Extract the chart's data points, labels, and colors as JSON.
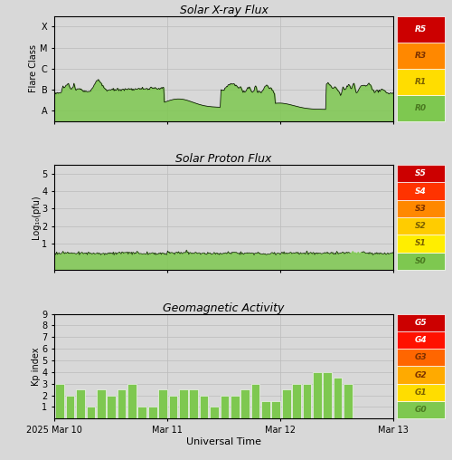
{
  "title_xray": "Solar X-ray Flux",
  "title_proton": "Solar Proton Flux",
  "title_geo": "Geomagnetic Activity",
  "xlabel": "Universal Time",
  "ylabel_xray": "Flare Class",
  "ylabel_proton": "Log₁₀(pfu)",
  "ylabel_geo": "Kp index",
  "bg_color": "#d8d8d8",
  "plot_bg": "#d8d8d8",
  "green_fill": "#7ec850",
  "r_labels_bt": [
    "R0",
    "R1",
    "R3",
    "R5"
  ],
  "r_colors_bt": [
    "#7ec850",
    "#ffdd00",
    "#ff8800",
    "#cc0000"
  ],
  "r_text_colors": [
    "#4a7a20",
    "#7a6000",
    "#7a3000",
    "#ffffff"
  ],
  "s_labels_bt": [
    "S0",
    "S1",
    "S2",
    "S3",
    "S4",
    "S5"
  ],
  "s_colors_bt": [
    "#7ec850",
    "#ffee00",
    "#ffcc00",
    "#ff8800",
    "#ff3300",
    "#cc0000"
  ],
  "s_text_colors": [
    "#4a7a20",
    "#7a6000",
    "#7a6000",
    "#7a3000",
    "#ffffff",
    "#ffffff"
  ],
  "g_labels_bt": [
    "G0",
    "G1",
    "G2",
    "G3",
    "G4",
    "G5"
  ],
  "g_colors_bt": [
    "#7ec850",
    "#ffdd00",
    "#ffaa00",
    "#ff6600",
    "#ff1100",
    "#cc0000"
  ],
  "g_text_colors": [
    "#4a7a20",
    "#7a6000",
    "#7a3000",
    "#7a3000",
    "#ffffff",
    "#ffffff"
  ],
  "kp_values": [
    3,
    2,
    2.5,
    1,
    2.5,
    2,
    2.5,
    3,
    1,
    1,
    2.5,
    2,
    2.5,
    2.5,
    2,
    1,
    2,
    2,
    2.5,
    3,
    1.5,
    1.5,
    2.5,
    3,
    3,
    4,
    4,
    3.5,
    3
  ],
  "xtick_positions": [
    0,
    1,
    2,
    3
  ],
  "xtick_labels": [
    "2025 Mar 10",
    "Mar 11",
    "Mar 12",
    "Mar 13"
  ],
  "xray_ytick_vals": [
    -8,
    -7,
    -6,
    -5,
    -4
  ],
  "xray_ytick_labels": [
    "A",
    "B",
    "C",
    "M",
    "X"
  ],
  "proton_ytick_vals": [
    1,
    2,
    3,
    4,
    5
  ],
  "proton_ytick_labels": [
    "1",
    "2",
    "3",
    "4",
    "5"
  ],
  "geo_ytick_vals": [
    1,
    2,
    3,
    4,
    5,
    6,
    7,
    8,
    9
  ],
  "geo_ytick_labels": [
    "1",
    "2",
    "3",
    "4",
    "5",
    "6",
    "7",
    "8",
    "9"
  ]
}
